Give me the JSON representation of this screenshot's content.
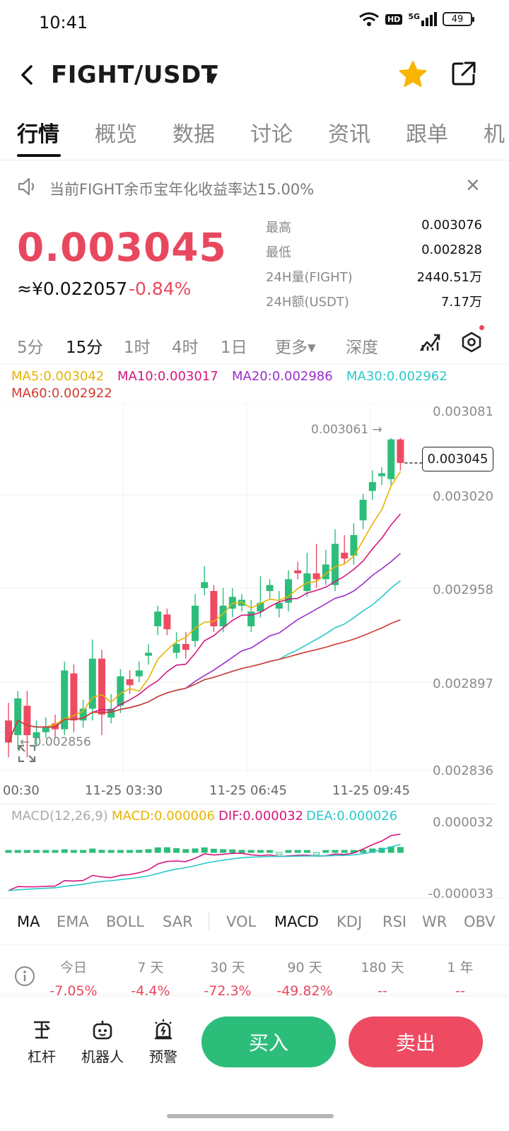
{
  "status": {
    "time": "10:41",
    "hd": "HD",
    "network": "5G",
    "battery": "49"
  },
  "header": {
    "pair": "FIGHT/USDT"
  },
  "tabs": [
    "行情",
    "概览",
    "数据",
    "讨论",
    "资讯",
    "跟单",
    "机"
  ],
  "notice": {
    "text": "当前FIGHT余币宝年化收益率达15.00%"
  },
  "price": {
    "last": "0.003045",
    "cny": "≈¥0.022057",
    "change": "-0.84%"
  },
  "stats": [
    {
      "label": "最高",
      "value": "0.003076"
    },
    {
      "label": "最低",
      "value": "0.002828"
    },
    {
      "label": "24H量(FIGHT)",
      "value": "2440.51万"
    },
    {
      "label": "24H额(USDT)",
      "value": "7.17万"
    }
  ],
  "intervals": [
    "5分",
    "15分",
    "1时",
    "4时",
    "1日",
    "更多▾",
    "深度"
  ],
  "active_interval": "15分",
  "ma_legend": {
    "ma5": "MA5:0.003042",
    "ma10": "MA10:0.003017",
    "ma20": "MA20:0.002986",
    "ma30": "MA30:0.002962",
    "ma60": "MA60:0.002922"
  },
  "colors": {
    "up": "#2dbd7b",
    "down": "#ee4b63",
    "ma5": "#e6b400",
    "ma10": "#d4177f",
    "ma20": "#9b2fc9",
    "ma30": "#2ac8c8",
    "ma60": "#d23a2f"
  },
  "chart": {
    "y_ticks": [
      "0.003081",
      "0.003020",
      "0.002958",
      "0.002897",
      "0.002836"
    ],
    "x_ticks": [
      "00:30",
      "11-25 03:30",
      "11-25 06:45",
      "11-25 09:45"
    ],
    "high_marker": "0.003061 →",
    "low_marker": "← 0.002856",
    "current_price_tag": "0.003045"
  },
  "chart_data": {
    "type": "candlestick",
    "title": "",
    "ylim": [
      0.002836,
      0.003081
    ],
    "candles": [
      {
        "o": 0.00287,
        "c": 0.002855,
        "h": 0.002882,
        "l": 0.002845
      },
      {
        "o": 0.00286,
        "c": 0.002885,
        "h": 0.00289,
        "l": 0.00285
      },
      {
        "o": 0.00288,
        "c": 0.00286,
        "h": 0.00289,
        "l": 0.002845
      },
      {
        "o": 0.002858,
        "c": 0.002862,
        "h": 0.00287,
        "l": 0.002852
      },
      {
        "o": 0.002862,
        "c": 0.002866,
        "h": 0.002872,
        "l": 0.002858
      },
      {
        "o": 0.002868,
        "c": 0.002864,
        "h": 0.002874,
        "l": 0.002858
      },
      {
        "o": 0.002864,
        "c": 0.002904,
        "h": 0.00291,
        "l": 0.00286
      },
      {
        "o": 0.002902,
        "c": 0.00287,
        "h": 0.002908,
        "l": 0.002862
      },
      {
        "o": 0.00287,
        "c": 0.002878,
        "h": 0.002884,
        "l": 0.002865
      },
      {
        "o": 0.002878,
        "c": 0.002912,
        "h": 0.002925,
        "l": 0.00287
      },
      {
        "o": 0.002912,
        "c": 0.002874,
        "h": 0.002918,
        "l": 0.00286
      },
      {
        "o": 0.002872,
        "c": 0.002878,
        "h": 0.002888,
        "l": 0.002868
      },
      {
        "o": 0.00288,
        "c": 0.0029,
        "h": 0.002905,
        "l": 0.002875
      },
      {
        "o": 0.002898,
        "c": 0.002894,
        "h": 0.002904,
        "l": 0.002888
      },
      {
        "o": 0.0029,
        "c": 0.002904,
        "h": 0.00291,
        "l": 0.002896
      },
      {
        "o": 0.002914,
        "c": 0.002916,
        "h": 0.002922,
        "l": 0.002908
      },
      {
        "o": 0.002934,
        "c": 0.002944,
        "h": 0.002948,
        "l": 0.002928
      },
      {
        "o": 0.002942,
        "c": 0.002932,
        "h": 0.002946,
        "l": 0.002928
      },
      {
        "o": 0.002916,
        "c": 0.002922,
        "h": 0.00293,
        "l": 0.002912
      },
      {
        "o": 0.002922,
        "c": 0.002918,
        "h": 0.00293,
        "l": 0.002912
      },
      {
        "o": 0.002924,
        "c": 0.002948,
        "h": 0.002956,
        "l": 0.00292
      },
      {
        "o": 0.00296,
        "c": 0.002964,
        "h": 0.002975,
        "l": 0.002955
      },
      {
        "o": 0.002958,
        "c": 0.002934,
        "h": 0.002962,
        "l": 0.00293
      },
      {
        "o": 0.002934,
        "c": 0.002948,
        "h": 0.00296,
        "l": 0.00293
      },
      {
        "o": 0.002946,
        "c": 0.002954,
        "h": 0.00296,
        "l": 0.00294
      },
      {
        "o": 0.002948,
        "c": 0.002952,
        "h": 0.002956,
        "l": 0.002944
      },
      {
        "o": 0.002934,
        "c": 0.002944,
        "h": 0.002952,
        "l": 0.00293
      },
      {
        "o": 0.002944,
        "c": 0.00295,
        "h": 0.002968,
        "l": 0.00294
      },
      {
        "o": 0.002958,
        "c": 0.002962,
        "h": 0.002966,
        "l": 0.002952
      },
      {
        "o": 0.002946,
        "c": 0.00295,
        "h": 0.002958,
        "l": 0.00294
      },
      {
        "o": 0.00295,
        "c": 0.002966,
        "h": 0.002972,
        "l": 0.002944
      },
      {
        "o": 0.002972,
        "c": 0.00297,
        "h": 0.002978,
        "l": 0.002966
      },
      {
        "o": 0.002958,
        "c": 0.00297,
        "h": 0.002984,
        "l": 0.002954
      },
      {
        "o": 0.00297,
        "c": 0.002966,
        "h": 0.00299,
        "l": 0.00296
      },
      {
        "o": 0.002966,
        "c": 0.002976,
        "h": 0.002986,
        "l": 0.002962
      },
      {
        "o": 0.002962,
        "c": 0.00299,
        "h": 0.003,
        "l": 0.002958
      },
      {
        "o": 0.002984,
        "c": 0.00298,
        "h": 0.002996,
        "l": 0.002976
      },
      {
        "o": 0.002982,
        "c": 0.002996,
        "h": 0.003004,
        "l": 0.002976
      },
      {
        "o": 0.003006,
        "c": 0.00302,
        "h": 0.003024,
        "l": 0.003
      },
      {
        "o": 0.003026,
        "c": 0.003032,
        "h": 0.00304,
        "l": 0.00302
      },
      {
        "o": 0.003036,
        "c": 0.003038,
        "h": 0.003042,
        "l": 0.00303
      },
      {
        "o": 0.003034,
        "c": 0.003061,
        "h": 0.003062,
        "l": 0.00303
      },
      {
        "o": 0.003061,
        "c": 0.003045,
        "h": 0.003062,
        "l": 0.00304
      }
    ]
  },
  "macd": {
    "label": "MACD(12,26,9)",
    "macd": "MACD:0.000006",
    "dif": "DIF:0.000032",
    "dea": "DEA:0.000026",
    "y_top": "0.000032",
    "y_bottom": "-0.000033"
  },
  "indicators": [
    "MA",
    "EMA",
    "BOLL",
    "SAR",
    "VOL",
    "MACD",
    "KDJ",
    "RSI",
    "WR",
    "OBV"
  ],
  "performance": [
    {
      "label": "今日",
      "value": "-7.05%"
    },
    {
      "label": "7 天",
      "value": "-4.4%"
    },
    {
      "label": "30 天",
      "value": "-72.3%"
    },
    {
      "label": "90 天",
      "value": "-49.82%"
    },
    {
      "label": "180 天",
      "value": "--"
    },
    {
      "label": "1 年",
      "value": "--"
    }
  ],
  "bottom": {
    "tools": [
      "杠杆",
      "机器人",
      "预警"
    ],
    "buy": "买入",
    "sell": "卖出"
  }
}
